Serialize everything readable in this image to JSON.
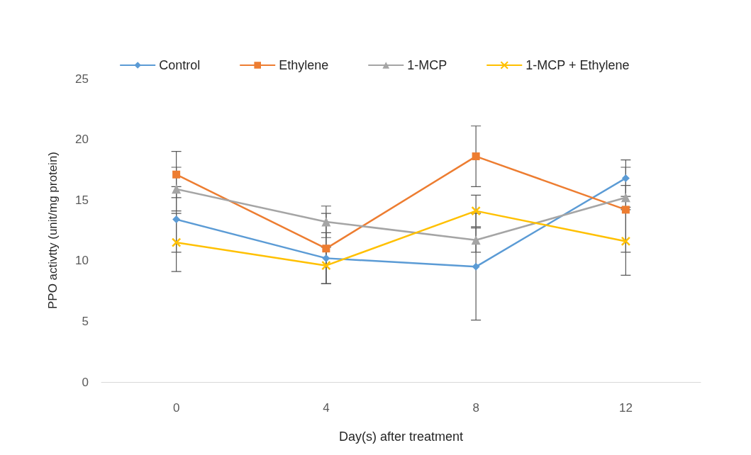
{
  "chart_data": {
    "type": "line",
    "xlabel": "Day(s) after treatment",
    "ylabel": "PPO activtty (unit/mg protein)",
    "categories": [
      "0",
      "4",
      "8",
      "12"
    ],
    "series": [
      {
        "name": "Control",
        "color": "#5b9bd5",
        "marker": "diamond",
        "values": [
          13.4,
          10.2,
          9.5,
          16.8
        ],
        "errors": [
          2.7,
          2.1,
          4.4,
          1.5
        ]
      },
      {
        "name": "Ethylene",
        "color": "#ed7d31",
        "marker": "square",
        "values": [
          17.1,
          11.0,
          18.6,
          14.2
        ],
        "errors": [
          1.9,
          2.9,
          2.5,
          3.5
        ]
      },
      {
        "name": "1-MCP",
        "color": "#a5a5a5",
        "marker": "triangle",
        "values": [
          15.9,
          13.2,
          11.7,
          15.2
        ],
        "errors": [
          1.8,
          1.3,
          1.0,
          1.0
        ]
      },
      {
        "name": "1-MCP + Ethylene",
        "color": "#ffc000",
        "marker": "cross",
        "values": [
          11.5,
          9.6,
          14.1,
          11.6
        ],
        "errors": [
          2.4,
          1.5,
          1.3,
          2.8
        ]
      }
    ],
    "ylim": [
      0,
      25
    ],
    "yticks": [
      0,
      5,
      10,
      15,
      20,
      25
    ],
    "grid": false,
    "legend": "top"
  }
}
